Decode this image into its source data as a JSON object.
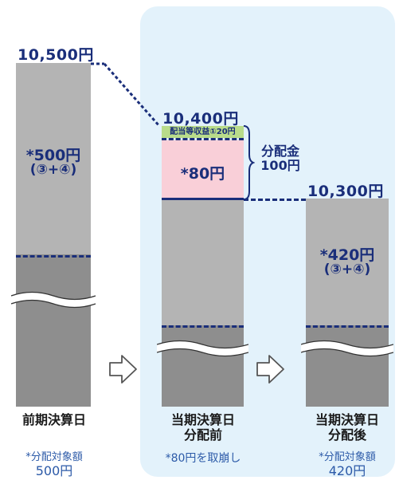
{
  "columns": {
    "prev": {
      "price": "10,500円",
      "amount": "*500円",
      "formula": "(③+④)",
      "label": "前期決算日",
      "note": "*分配対象額",
      "note_amount": "500円"
    },
    "before": {
      "price": "10,400円",
      "green_label": "配当等収益①20円",
      "pink_amount": "*80円",
      "label_line1": "当期決算日",
      "label_line2": "分配前",
      "note": "*80円を取崩し"
    },
    "after": {
      "price": "10,300円",
      "amount": "*420円",
      "formula": "(③+④)",
      "label_line1": "当期決算日",
      "label_line2": "分配後",
      "note": "*分配対象額",
      "note_amount": "420円"
    }
  },
  "distribution": {
    "label": "分配金",
    "amount": "100円"
  },
  "colors": {
    "navy": "#1a2e7a",
    "panel_bg": "#e3f2fb",
    "bar_light": "#b4b4b4",
    "bar_dark": "#8e8e8e",
    "green": "#b9dc8a",
    "pink": "#f9cfd8"
  }
}
